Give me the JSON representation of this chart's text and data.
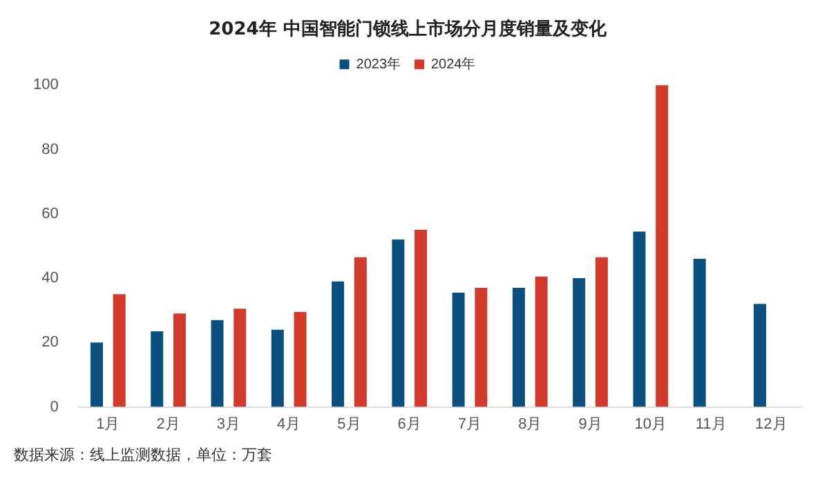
{
  "chart_data": {
    "type": "bar",
    "title": "2024年 中国智能门锁线上市场分月度销量及变化",
    "categories": [
      "1月",
      "2月",
      "3月",
      "4月",
      "5月",
      "6月",
      "7月",
      "8月",
      "9月",
      "10月",
      "11月",
      "12月"
    ],
    "series": [
      {
        "name": "2023年",
        "color": "#0b507f",
        "values": [
          20,
          23.5,
          27,
          24,
          39,
          52,
          35.5,
          37,
          40,
          54.5,
          46,
          32
        ]
      },
      {
        "name": "2024年",
        "color": "#d23b2c",
        "values": [
          35,
          29,
          30.5,
          29.5,
          46.5,
          55,
          37,
          40.5,
          46.5,
          100,
          null,
          null
        ]
      }
    ],
    "ylim": [
      0,
      100
    ],
    "yticks": [
      0,
      20,
      40,
      60,
      80,
      100
    ],
    "grid": false,
    "legend": "top",
    "annotations": [
      "数据来源：线上监测数据，单位：万套"
    ]
  }
}
